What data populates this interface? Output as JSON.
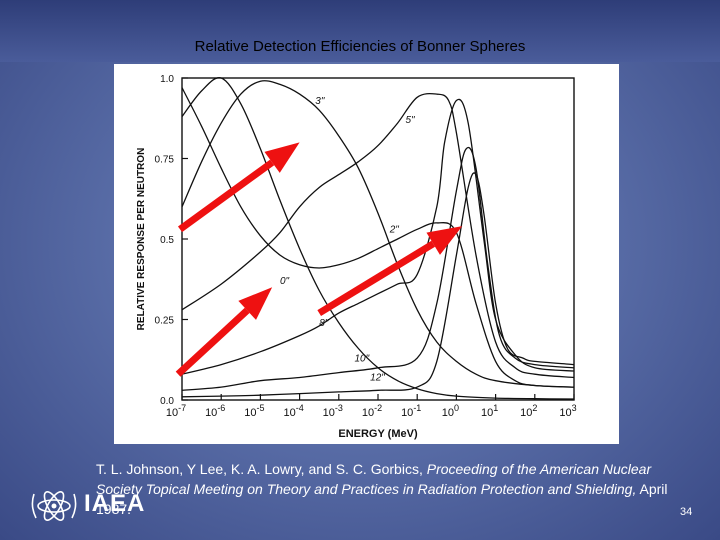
{
  "slide": {
    "title": "Relative Detection Efficiencies of Bonner Spheres",
    "citation_authors": "T. L. Johnson, Y Lee, K. A. Lowry, and S. C. Gorbics,",
    "citation_proceedings": "Proceeding of the American Nuclear Society Topical Meeting on Theory and Practices in Radiation Protection and Shielding,",
    "citation_date": "April 1987.",
    "logo_text": "IAEA",
    "page_number": "34"
  },
  "colors": {
    "curve": "#111111",
    "arrow": "#ee1111",
    "background": "#5a6ea8"
  },
  "chart_data": {
    "type": "line",
    "xlabel": "ENERGY (MeV)",
    "ylabel": "RELATIVE RESPONSE PER NEUTRON",
    "xscale": "log",
    "xlim": [
      1e-07,
      1000.0
    ],
    "ylim": [
      0,
      1.0
    ],
    "x_ticks": [
      {
        "value": -7,
        "base": "10",
        "exp": "-7"
      },
      {
        "value": -6,
        "base": "10",
        "exp": "-6"
      },
      {
        "value": -5,
        "base": "10",
        "exp": "-5"
      },
      {
        "value": -4,
        "base": "10",
        "exp": "-4"
      },
      {
        "value": -3,
        "base": "10",
        "exp": "-3"
      },
      {
        "value": -2,
        "base": "10",
        "exp": "-2"
      },
      {
        "value": -1,
        "base": "10",
        "exp": "-1"
      },
      {
        "value": 0,
        "base": "10",
        "exp": "0"
      },
      {
        "value": 1,
        "base": "10",
        "exp": "1"
      },
      {
        "value": 2,
        "base": "10",
        "exp": "2"
      },
      {
        "value": 3,
        "base": "10",
        "exp": "3"
      }
    ],
    "y_ticks": [
      {
        "value": 0.0,
        "label": "0.0"
      },
      {
        "value": 0.25,
        "label": "0.25"
      },
      {
        "value": 0.5,
        "label": "0.5"
      },
      {
        "value": 0.75,
        "label": "0.75"
      },
      {
        "value": 1.0,
        "label": "1.0"
      }
    ],
    "series": [
      {
        "name": "0\"",
        "label_at": [
          -4.5,
          0.36
        ],
        "log_x": [
          -7,
          -6.5,
          -6,
          -5.5,
          -5,
          -4.5,
          -4,
          -3.5,
          -3,
          -2.5,
          -2,
          -1.5,
          -1,
          -0.5,
          0,
          1,
          2,
          3
        ],
        "y": [
          0.88,
          0.96,
          1.0,
          0.92,
          0.78,
          0.62,
          0.47,
          0.34,
          0.24,
          0.16,
          0.1,
          0.06,
          0.035,
          0.02,
          0.012,
          0.006,
          0.004,
          0.003
        ]
      },
      {
        "name": "2\"",
        "label_at": [
          -1.7,
          0.52
        ],
        "log_x": [
          -7,
          -6.5,
          -6,
          -5.5,
          -5,
          -4.5,
          -4,
          -3.5,
          -3,
          -2.5,
          -2,
          -1.5,
          -1,
          -0.5,
          0,
          0.5,
          1,
          1.5,
          2,
          3
        ],
        "y": [
          0.97,
          0.85,
          0.72,
          0.6,
          0.51,
          0.45,
          0.42,
          0.41,
          0.42,
          0.44,
          0.47,
          0.5,
          0.53,
          0.55,
          0.52,
          0.3,
          0.12,
          0.06,
          0.045,
          0.04
        ]
      },
      {
        "name": "3\"",
        "label_at": [
          -3.6,
          0.92
        ],
        "log_x": [
          -7,
          -6.5,
          -6,
          -5.5,
          -5,
          -4.5,
          -4,
          -3.5,
          -3,
          -2.5,
          -2,
          -1.5,
          -1,
          -0.5,
          0,
          0.5,
          1,
          2,
          3
        ],
        "y": [
          0.6,
          0.74,
          0.86,
          0.95,
          0.99,
          0.98,
          0.95,
          0.9,
          0.82,
          0.72,
          0.58,
          0.42,
          0.28,
          0.18,
          0.12,
          0.08,
          0.06,
          0.045,
          0.04
        ]
      },
      {
        "name": "5\"",
        "label_at": [
          -1.3,
          0.86
        ],
        "log_x": [
          -7,
          -6,
          -5,
          -4.5,
          -4,
          -3.5,
          -3,
          -2.5,
          -2,
          -1.5,
          -1,
          -0.5,
          -0.2,
          0,
          0.5,
          1,
          1.5,
          2,
          3
        ],
        "y": [
          0.28,
          0.36,
          0.46,
          0.52,
          0.6,
          0.66,
          0.7,
          0.74,
          0.79,
          0.86,
          0.94,
          0.95,
          0.93,
          0.83,
          0.45,
          0.18,
          0.1,
          0.08,
          0.07
        ]
      },
      {
        "name": "8\"",
        "label_at": [
          -3.5,
          0.23
        ],
        "log_x": [
          -7,
          -6,
          -5,
          -4,
          -3.5,
          -3,
          -2.5,
          -2,
          -1.5,
          -1,
          -0.5,
          -0.3,
          0,
          0.3,
          0.7,
          1,
          1.5,
          2,
          3
        ],
        "y": [
          0.08,
          0.11,
          0.15,
          0.2,
          0.23,
          0.27,
          0.3,
          0.33,
          0.36,
          0.39,
          0.6,
          0.8,
          0.93,
          0.86,
          0.5,
          0.25,
          0.14,
          0.1,
          0.09
        ]
      },
      {
        "name": "10\"",
        "label_at": [
          -2.6,
          0.12
        ],
        "log_x": [
          -7,
          -6,
          -5,
          -4,
          -3,
          -2,
          -1,
          -0.5,
          0,
          0.25,
          0.5,
          0.8,
          1.1,
          1.5,
          2,
          3
        ],
        "y": [
          0.03,
          0.04,
          0.06,
          0.07,
          0.085,
          0.1,
          0.13,
          0.3,
          0.65,
          0.78,
          0.72,
          0.42,
          0.2,
          0.13,
          0.11,
          0.1
        ]
      },
      {
        "name": "12\"",
        "label_at": [
          -2.2,
          0.06
        ],
        "log_x": [
          -7,
          -6,
          -5,
          -4,
          -3,
          -2,
          -1,
          -0.5,
          0,
          0.3,
          0.5,
          0.7,
          1,
          1.3,
          1.7,
          2,
          3
        ],
        "y": [
          0.01,
          0.012,
          0.015,
          0.02,
          0.025,
          0.03,
          0.04,
          0.12,
          0.45,
          0.66,
          0.7,
          0.58,
          0.3,
          0.16,
          0.13,
          0.12,
          0.11
        ]
      }
    ],
    "arrows": [
      {
        "from": [
          -7.05,
          0.53
        ],
        "to": [
          -4.0,
          0.8
        ]
      },
      {
        "from": [
          -7.1,
          0.08
        ],
        "to": [
          -4.7,
          0.35
        ]
      },
      {
        "from": [
          -3.5,
          0.27
        ],
        "to": [
          0.15,
          0.54
        ]
      }
    ]
  }
}
